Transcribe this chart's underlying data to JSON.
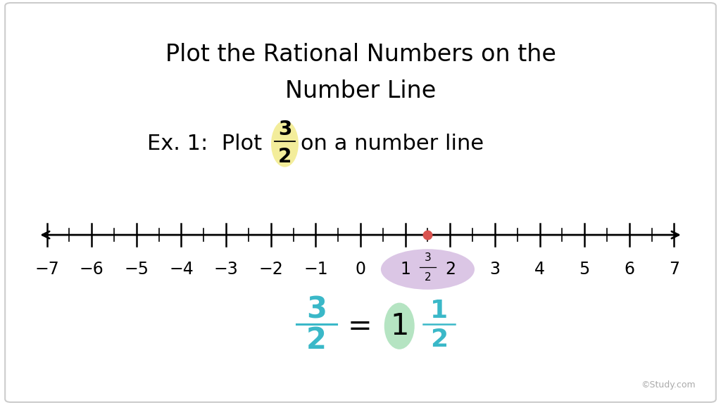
{
  "title_line1": "Plot the Rational Numbers on the",
  "title_line2": "Number Line",
  "number_line_min": -7,
  "number_line_max": 7,
  "tick_labels": [
    -7,
    -6,
    -5,
    -4,
    -3,
    -2,
    -1,
    0,
    1,
    2,
    3,
    4,
    5,
    6,
    7
  ],
  "plot_point": 1.5,
  "point_color": "#d9534f",
  "highlight_yellow_color": "#f0e87a",
  "highlight_yellow_alpha": 0.75,
  "highlight_purple_color": "#c8a8d8",
  "highlight_purple_alpha": 0.65,
  "highlight_green_color": "#a8e0b8",
  "highlight_green_alpha": 0.85,
  "highlight_pink_color": "#f0c0c0",
  "highlight_pink_alpha": 0.6,
  "equation_color_blue": "#3ab8c8",
  "background_color": "#ffffff",
  "border_color": "#cccccc",
  "title_fontsize": 24,
  "subtitle_fontsize": 22,
  "tick_fontsize": 17,
  "eq_fontsize": 30,
  "watermark": "©Study.com"
}
